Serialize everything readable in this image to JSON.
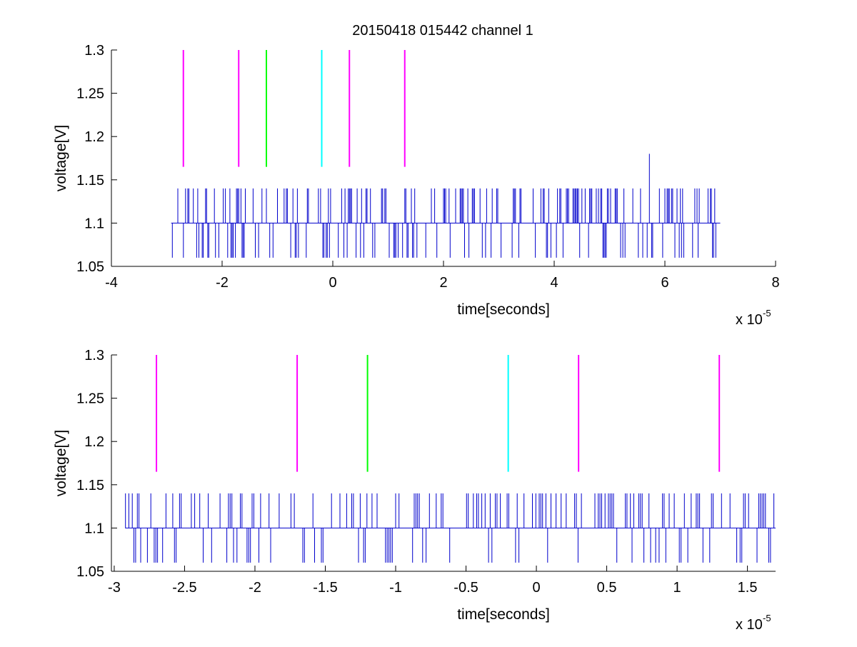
{
  "figure_title": "20150418 015442 channel 1",
  "colors": {
    "signal": "#0000cc",
    "magenta": "#ff00ff",
    "green": "#00ff00",
    "cyan": "#00ffff",
    "axes": "#000000"
  },
  "chart_data": [
    {
      "type": "line",
      "title": "20150418 015442 channel 1",
      "xlabel": "time[seconds]",
      "ylabel": "voltage[V]",
      "x_exponent_label": "x 10",
      "x_exponent": "-5",
      "xlim": [
        -4,
        8
      ],
      "ylim": [
        1.05,
        1.3
      ],
      "xticks": [
        -4,
        -2,
        0,
        2,
        4,
        6,
        8
      ],
      "xtick_labels": [
        "-4",
        "-2",
        "0",
        "2",
        "4",
        "6",
        "8"
      ],
      "yticks": [
        1.05,
        1.1,
        1.15,
        1.2,
        1.25,
        1.3
      ],
      "ytick_labels": [
        "1.05",
        "1.1",
        "1.15",
        "1.2",
        "1.25",
        "1.3"
      ],
      "grid": false,
      "signal": {
        "x_start": -2.92,
        "x_end": 7.0,
        "baseline": 1.1,
        "levels": [
          1.06,
          1.1,
          1.14
        ],
        "spike": {
          "x": 5.72,
          "y": 1.18
        }
      },
      "markers": [
        {
          "x": -2.7,
          "color": "magenta",
          "y_from": 1.165,
          "y_to": 1.3
        },
        {
          "x": -1.7,
          "color": "magenta",
          "y_from": 1.165,
          "y_to": 1.3
        },
        {
          "x": -1.2,
          "color": "green",
          "y_from": 1.165,
          "y_to": 1.3
        },
        {
          "x": -0.2,
          "color": "cyan",
          "y_from": 1.165,
          "y_to": 1.3
        },
        {
          "x": 0.3,
          "color": "magenta",
          "y_from": 1.165,
          "y_to": 1.3
        },
        {
          "x": 1.3,
          "color": "magenta",
          "y_from": 1.165,
          "y_to": 1.3
        }
      ]
    },
    {
      "type": "line",
      "title": "",
      "xlabel": "time[seconds]",
      "ylabel": "voltage[V]",
      "x_exponent_label": "x 10",
      "x_exponent": "-5",
      "xlim": [
        -3.02,
        1.7
      ],
      "ylim": [
        1.05,
        1.3
      ],
      "xticks": [
        -3,
        -2.5,
        -2,
        -1.5,
        -1,
        -0.5,
        0,
        0.5,
        1,
        1.5
      ],
      "xtick_labels": [
        "-3",
        "-2.5",
        "-2",
        "-1.5",
        "-1",
        "-0.5",
        "0",
        "0.5",
        "1",
        "1.5"
      ],
      "yticks": [
        1.05,
        1.1,
        1.15,
        1.2,
        1.25,
        1.3
      ],
      "ytick_labels": [
        "1.05",
        "1.1",
        "1.15",
        "1.2",
        "1.25",
        "1.3"
      ],
      "grid": false,
      "signal": {
        "x_start": -2.92,
        "x_end": 1.7,
        "baseline": 1.1,
        "levels": [
          1.06,
          1.1,
          1.14
        ]
      },
      "markers": [
        {
          "x": -2.7,
          "color": "magenta",
          "y_from": 1.165,
          "y_to": 1.3
        },
        {
          "x": -1.7,
          "color": "magenta",
          "y_from": 1.165,
          "y_to": 1.3
        },
        {
          "x": -1.2,
          "color": "green",
          "y_from": 1.165,
          "y_to": 1.3
        },
        {
          "x": -0.2,
          "color": "cyan",
          "y_from": 1.165,
          "y_to": 1.3
        },
        {
          "x": 0.3,
          "color": "magenta",
          "y_from": 1.165,
          "y_to": 1.3
        },
        {
          "x": 1.3,
          "color": "magenta",
          "y_from": 1.165,
          "y_to": 1.3
        }
      ]
    }
  ]
}
